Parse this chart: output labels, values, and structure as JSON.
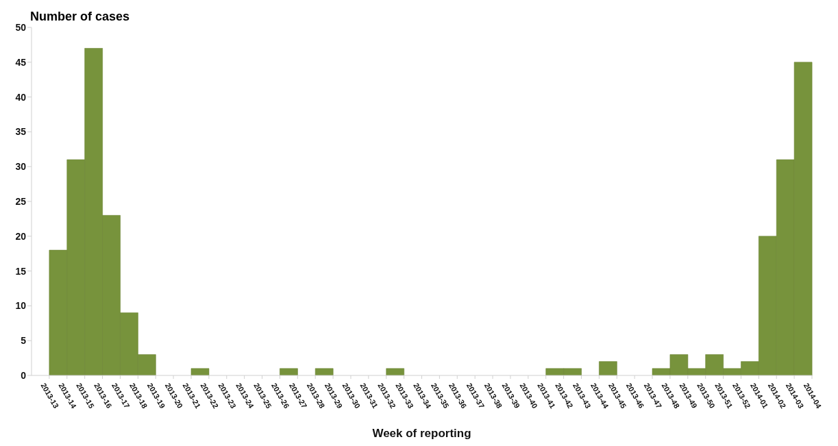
{
  "chart_data": {
    "type": "bar",
    "title": "Number of cases",
    "xlabel": "Week of reporting",
    "categories": [
      "2013-13",
      "2013-14",
      "2013-15",
      "2013-16",
      "2013-17",
      "2013-18",
      "2013-19",
      "2013-20",
      "2013-21",
      "2013-22",
      "2013-23",
      "2013-24",
      "2013-25",
      "2013-26",
      "2013-27",
      "2013-28",
      "2013-29",
      "2013-30",
      "2013-31",
      "2013-32",
      "2013-33",
      "2013-34",
      "2013-35",
      "2013-36",
      "2013-37",
      "2013-38",
      "2013-39",
      "2013-40",
      "2013-41",
      "2013-42",
      "2013-43",
      "2013-44",
      "2013-45",
      "2013-46",
      "2013-47",
      "2013-48",
      "2013-49",
      "2013-50",
      "2013-51",
      "2013-52",
      "2014-01",
      "2014-02",
      "2014-03",
      "2014-04"
    ],
    "values": [
      0,
      18,
      31,
      47,
      23,
      9,
      3,
      0,
      0,
      1,
      0,
      0,
      0,
      0,
      1,
      0,
      1,
      0,
      0,
      0,
      1,
      0,
      0,
      0,
      0,
      0,
      0,
      0,
      0,
      1,
      1,
      0,
      2,
      0,
      0,
      1,
      3,
      1,
      3,
      1,
      2,
      20,
      31,
      45
    ],
    "color": "#77933c",
    "ylim": [
      0,
      50
    ],
    "yticks": [
      0,
      5,
      10,
      15,
      20,
      25,
      30,
      35,
      40,
      45,
      50
    ],
    "grid": false,
    "legend": false
  }
}
